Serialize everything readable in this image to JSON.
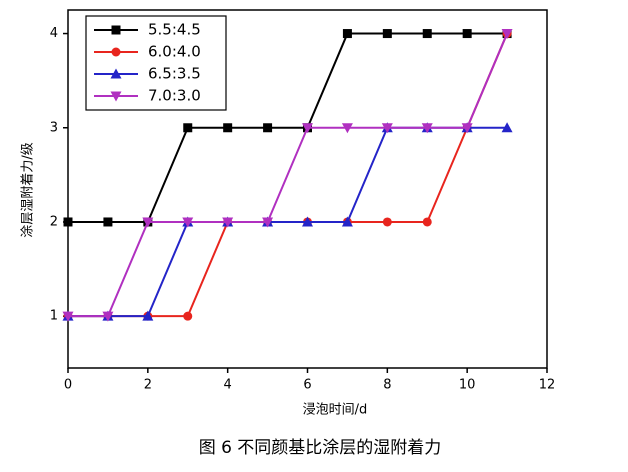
{
  "chart_data": {
    "type": "line",
    "caption": "图 6  不同颜基比涂层的湿附着力",
    "x_label": "浸泡时间/d",
    "y_label": "涂层湿附着力/级",
    "x": [
      0,
      1,
      2,
      3,
      4,
      5,
      6,
      7,
      8,
      9,
      10,
      11
    ],
    "series": [
      {
        "name": "5.5:4.5",
        "color": "#000000",
        "marker": "square",
        "values": [
          2,
          2,
          2,
          3,
          3,
          3,
          3,
          4,
          4,
          4,
          4,
          4
        ]
      },
      {
        "name": "6.0:4.0",
        "color": "#e8251e",
        "marker": "circle",
        "values": [
          1,
          1,
          1,
          1,
          2,
          2,
          2,
          2,
          2,
          2,
          3,
          4
        ]
      },
      {
        "name": "6.5:3.5",
        "color": "#2424c8",
        "marker": "triangle-up",
        "values": [
          1,
          1,
          1,
          2,
          2,
          2,
          2,
          2,
          3,
          3,
          3,
          3
        ]
      },
      {
        "name": "7.0:3.0",
        "color": "#b030c0",
        "marker": "triangle-down",
        "values": [
          1,
          1,
          2,
          2,
          2,
          2,
          3,
          3,
          3,
          3,
          3,
          4
        ]
      }
    ],
    "xlim": [
      0,
      12
    ],
    "xticks": [
      0,
      2,
      4,
      6,
      8,
      10,
      12
    ],
    "ylim": [
      0.45,
      4.25
    ],
    "yticks": [
      1,
      2,
      3,
      4
    ],
    "legend": "upper-left"
  }
}
